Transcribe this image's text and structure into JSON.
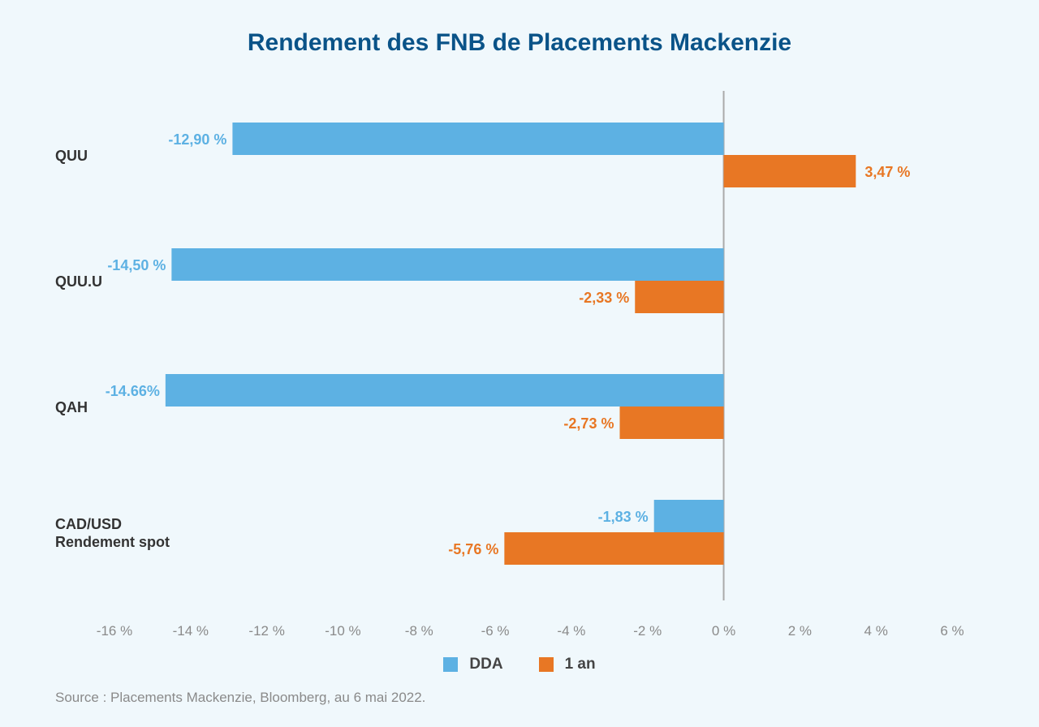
{
  "title": "Rendement des FNB de Placements Mackenzie",
  "source": "Source : Placements Mackenzie, Bloomberg, au 6 mai 2022.",
  "colors": {
    "dda": "#5db1e3",
    "one_year": "#e87724",
    "axis": "#aaaaaa"
  },
  "chart_data": {
    "type": "bar",
    "orientation": "horizontal",
    "categories": [
      [
        "QUU"
      ],
      [
        "QUU.U"
      ],
      [
        "QAH"
      ],
      [
        "CAD/USD",
        "Rendement spot"
      ]
    ],
    "series": [
      {
        "name": "DDA",
        "values": [
          -12.9,
          -14.5,
          -14.66,
          -1.83
        ],
        "labels": [
          "-12,90 %",
          "-14,50 %",
          "-14.66%",
          "-1,83 %"
        ]
      },
      {
        "name": "1 an",
        "values": [
          3.47,
          -2.33,
          -2.73,
          -5.76
        ],
        "labels": [
          "3,47 %",
          "-2,33 %",
          "-2,73 %",
          "-5,76 %"
        ]
      }
    ],
    "xlim": [
      -16,
      6
    ],
    "xticks": [
      -16,
      -14,
      -12,
      -10,
      -8,
      -6,
      -4,
      -2,
      0,
      2,
      4,
      6
    ],
    "xtick_labels": [
      "-16 %",
      "-14 %",
      "-12 %",
      "-10 %",
      "-8 %",
      "-6 %",
      "-4 %",
      "-2 %",
      "0 %",
      "2 %",
      "4 %",
      "6 %"
    ],
    "grid": false,
    "legend": "bottom"
  }
}
